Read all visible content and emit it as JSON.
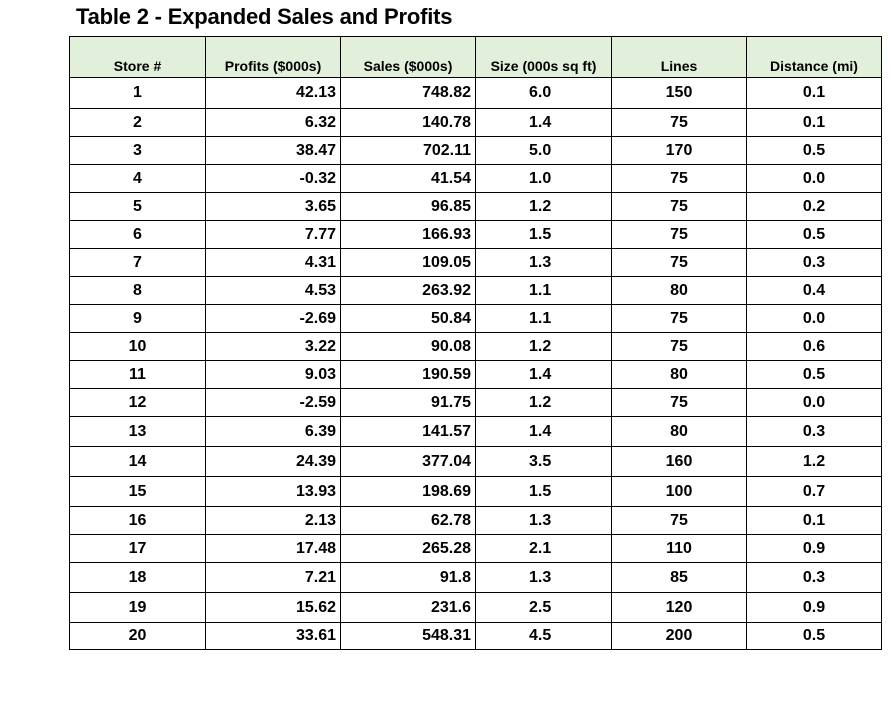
{
  "title": "Table 2 - Expanded Sales and Profits",
  "columns": [
    "Store #",
    "Profits ($000s)",
    "Sales ($000s)",
    "Size (000s sq ft)",
    "Lines",
    "Distance (mi)"
  ],
  "rows": [
    [
      "1",
      "42.13",
      "748.82",
      "6.0",
      "150",
      "0.1"
    ],
    [
      "2",
      "6.32",
      "140.78",
      "1.4",
      "75",
      "0.1"
    ],
    [
      "3",
      "38.47",
      "702.11",
      "5.0",
      "170",
      "0.5"
    ],
    [
      "4",
      "-0.32",
      "41.54",
      "1.0",
      "75",
      "0.0"
    ],
    [
      "5",
      "3.65",
      "96.85",
      "1.2",
      "75",
      "0.2"
    ],
    [
      "6",
      "7.77",
      "166.93",
      "1.5",
      "75",
      "0.5"
    ],
    [
      "7",
      "4.31",
      "109.05",
      "1.3",
      "75",
      "0.3"
    ],
    [
      "8",
      "4.53",
      "263.92",
      "1.1",
      "80",
      "0.4"
    ],
    [
      "9",
      "-2.69",
      "50.84",
      "1.1",
      "75",
      "0.0"
    ],
    [
      "10",
      "3.22",
      "90.08",
      "1.2",
      "75",
      "0.6"
    ],
    [
      "11",
      "9.03",
      "190.59",
      "1.4",
      "80",
      "0.5"
    ],
    [
      "12",
      "-2.59",
      "91.75",
      "1.2",
      "75",
      "0.0"
    ],
    [
      "13",
      "6.39",
      "141.57",
      "1.4",
      "80",
      "0.3"
    ],
    [
      "14",
      "24.39",
      "377.04",
      "3.5",
      "160",
      "1.2"
    ],
    [
      "15",
      "13.93",
      "198.69",
      "1.5",
      "100",
      "0.7"
    ],
    [
      "16",
      "2.13",
      "62.78",
      "1.3",
      "75",
      "0.1"
    ],
    [
      "17",
      "17.48",
      "265.28",
      "2.1",
      "110",
      "0.9"
    ],
    [
      "18",
      "7.21",
      "91.8",
      "1.3",
      "85",
      "0.3"
    ],
    [
      "19",
      "15.62",
      "231.6",
      "2.5",
      "120",
      "0.9"
    ],
    [
      "20",
      "33.61",
      "548.31",
      "4.5",
      "200",
      "0.5"
    ]
  ],
  "colors": {
    "header_fill": "#e2efda",
    "border": "#000000"
  }
}
